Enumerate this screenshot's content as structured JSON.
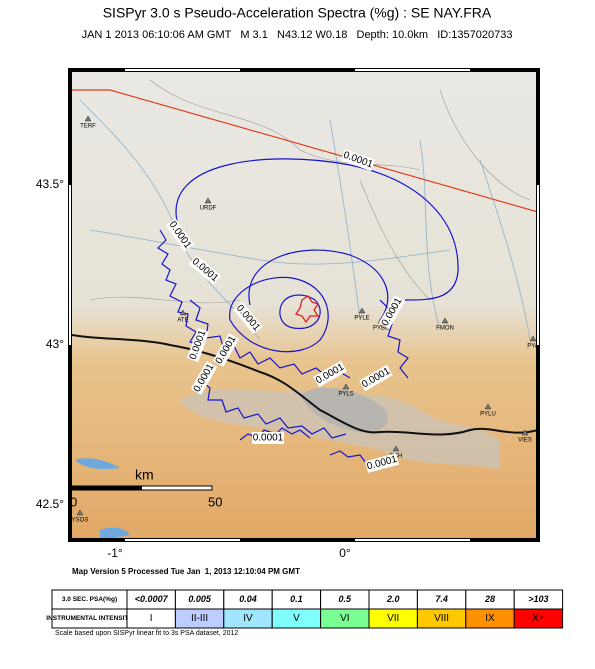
{
  "header": {
    "title": "SISPyr 3.0 s Pseudo-Acceleration Spectra (%g) : SE NAY.FRA",
    "subtitle": "JAN 1 2013 06:10:06 AM GMT   M 3.1   N43.12 W0.18   Depth: 10.0km   ID:1357020733"
  },
  "map": {
    "lat_labels": [
      "43.5°",
      "43°",
      "42.5°"
    ],
    "lon_labels": [
      "-1°",
      "0°"
    ],
    "stations": [
      "TERF",
      "URDF",
      "ATE",
      "PYLE",
      "PYBB",
      "FMON",
      "PYA",
      "PYLS",
      "PYLU",
      "VIES",
      "ECH",
      "YSOS"
    ],
    "contour_labels": [
      "0.0001",
      "0.0001",
      "0.0001",
      "0.0001",
      "0.0001",
      "0.0001",
      "0.0001",
      "0.0001",
      "0.0001",
      "0.0001",
      "0.0001",
      "0.0001"
    ],
    "scale": {
      "start": "0",
      "unit": "km",
      "end": "50"
    }
  },
  "footer": "Map Version 5 Processed Tue Jan  1, 2013 12:10:04 PM GMT",
  "legend": {
    "row_headers": [
      "3.0 SEC. PSA(%g)",
      "INSTRUMENTAL INTENSITY"
    ],
    "psa": [
      "<0.0007",
      "0.005",
      "0.04",
      "0.1",
      "0.5",
      "2.0",
      "7.4",
      "28",
      ">103"
    ],
    "intensity": [
      "I",
      "II-III",
      "IV",
      "V",
      "VI",
      "VII",
      "VIII",
      "IX",
      "X+"
    ],
    "colors": [
      "#ffffff",
      "#bfccff",
      "#a0e6ff",
      "#80ffff",
      "#7aff93",
      "#ffff00",
      "#ffc800",
      "#ff9100",
      "#ff0000"
    ]
  },
  "note": "Scale based upon SISPyr linear fit to 3s PSA dataset, 2012"
}
